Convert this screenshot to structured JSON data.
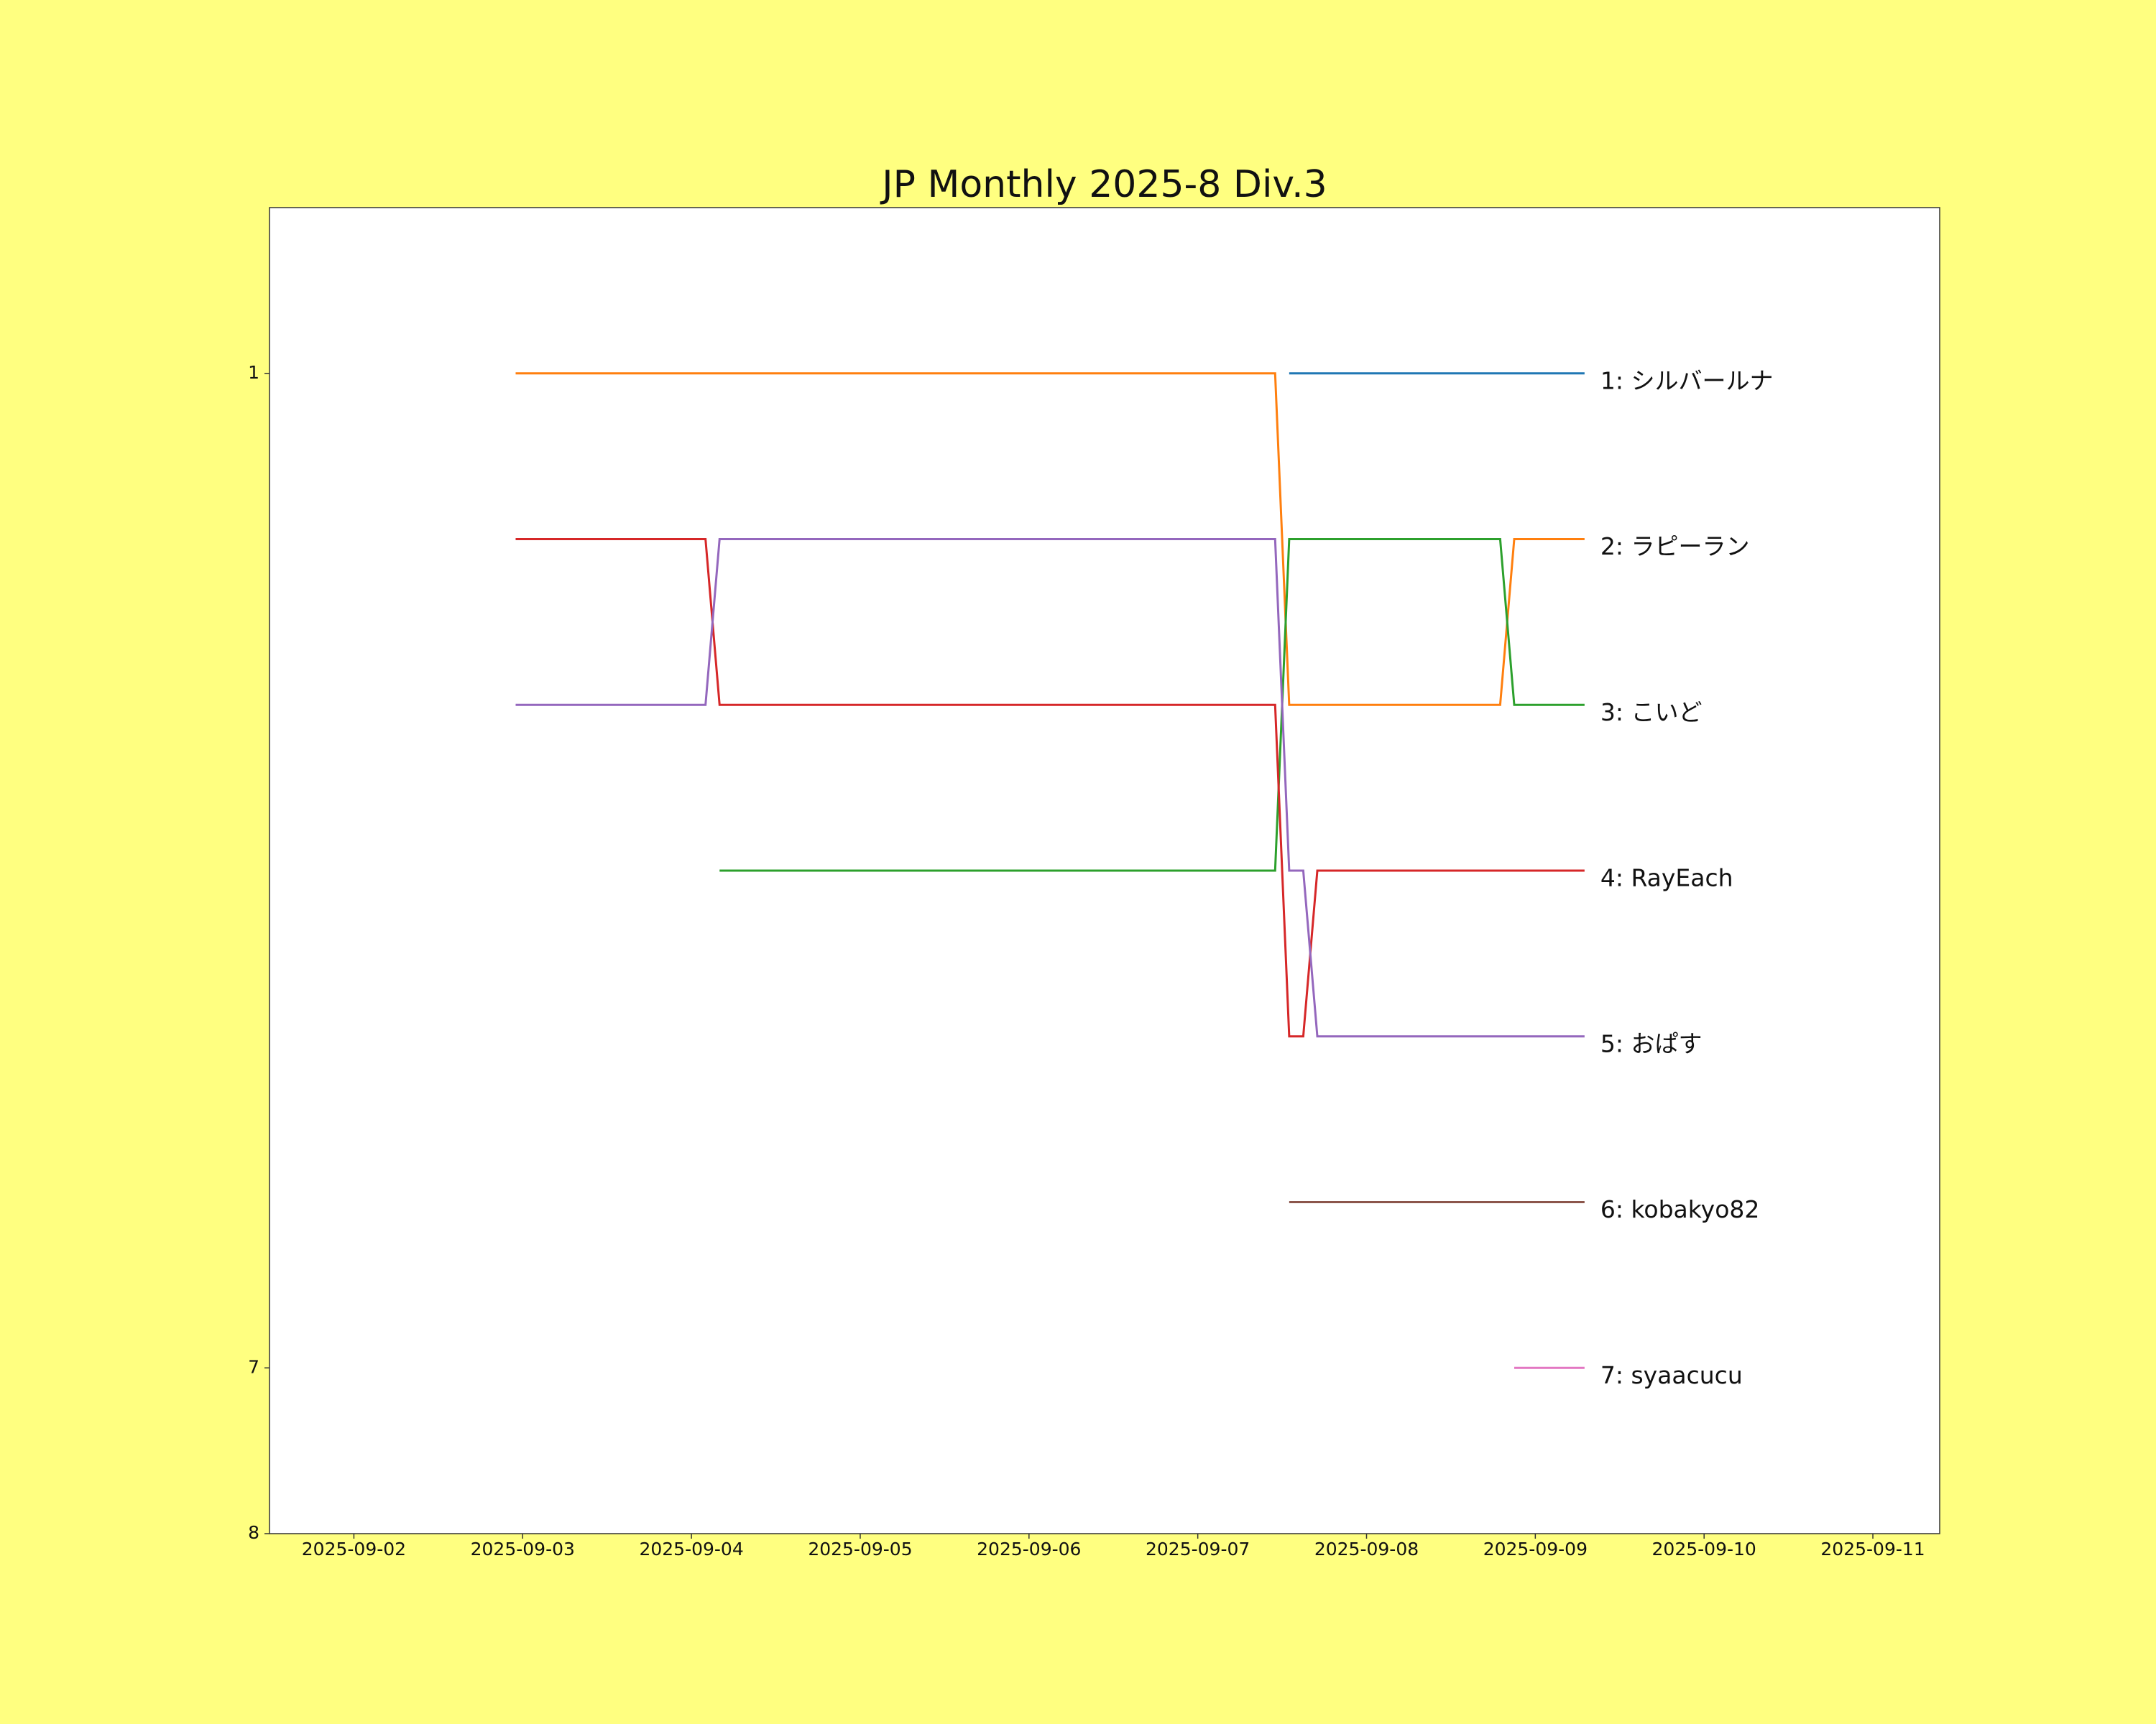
{
  "chart_data": {
    "type": "line",
    "title": "JP Monthly 2025-8 Div.3",
    "x": [
      "2025-09-02T23:00",
      "2025-09-04T02:00",
      "2025-09-04T04:00",
      "2025-09-07T11:00",
      "2025-09-07T13:00",
      "2025-09-07T15:00",
      "2025-09-07T17:00",
      "2025-09-08T19:00",
      "2025-09-08T21:00",
      "2025-09-09T07:00"
    ],
    "series": [
      {
        "name": "1: シルバールナ",
        "color": "#1f77b4",
        "values": [
          null,
          null,
          null,
          null,
          1,
          1,
          1,
          1,
          1,
          1
        ]
      },
      {
        "name": "2: ラピーラン",
        "color": "#ff7f0e",
        "values": [
          1,
          1,
          1,
          1,
          3,
          3,
          3,
          3,
          2,
          2
        ]
      },
      {
        "name": "3: こいど",
        "color": "#2ca02c",
        "values": [
          null,
          null,
          4,
          4,
          2,
          2,
          2,
          2,
          3,
          3
        ]
      },
      {
        "name": "4: RayEach",
        "color": "#d62728",
        "values": [
          2,
          2,
          3,
          3,
          5,
          5,
          4,
          4,
          4,
          4
        ]
      },
      {
        "name": "5: おぱす",
        "color": "#9467bd",
        "values": [
          3,
          3,
          2,
          2,
          4,
          4,
          5,
          5,
          5,
          5
        ]
      },
      {
        "name": "6: kobakyo82",
        "color": "#8c564b",
        "values": [
          null,
          null,
          null,
          null,
          6,
          6,
          6,
          6,
          6,
          6
        ]
      },
      {
        "name": "7: syaacucu",
        "color": "#e377c2",
        "values": [
          null,
          null,
          null,
          null,
          null,
          null,
          null,
          null,
          7,
          7
        ]
      }
    ],
    "xlim": [
      "2025-09-01T12:00",
      "2025-09-11T09:30"
    ],
    "xticks": [
      "2025-09-02",
      "2025-09-03",
      "2025-09-04",
      "2025-09-05",
      "2025-09-06",
      "2025-09-07",
      "2025-09-08",
      "2025-09-09",
      "2025-09-10",
      "2025-09-11"
    ],
    "ylim": [
      8,
      0
    ],
    "yticks": [
      1,
      7,
      8
    ],
    "grid": false
  }
}
